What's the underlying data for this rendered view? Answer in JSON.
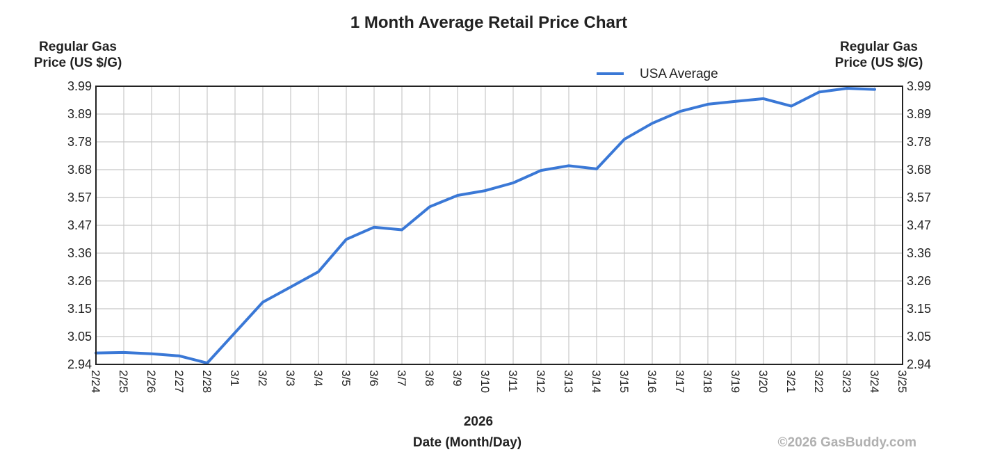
{
  "chart_data": {
    "type": "line",
    "title": "1 Month Average Retail Price Chart",
    "ylabel_left": [
      "Regular Gas",
      "Price (US $/G)"
    ],
    "ylabel_right": [
      "Regular Gas",
      "Price (US $/G)"
    ],
    "xlabel_year": "2026",
    "xlabel": "Date (Month/Day)",
    "copyright": "©2026 GasBuddy.com",
    "ylim": [
      2.94,
      3.99
    ],
    "yticks": [
      "3.99",
      "3.89",
      "3.78",
      "3.68",
      "3.57",
      "3.47",
      "3.36",
      "3.26",
      "3.15",
      "3.05",
      "2.94"
    ],
    "categories": [
      "2/24",
      "2/25",
      "2/26",
      "2/27",
      "2/28",
      "3/1",
      "3/2",
      "3/3",
      "3/4",
      "3/5",
      "3/6",
      "3/7",
      "3/8",
      "3/9",
      "3/10",
      "3/11",
      "3/12",
      "3/13",
      "3/14",
      "3/15",
      "3/16",
      "3/17",
      "3/18",
      "3/19",
      "3/20",
      "3/21",
      "3/22",
      "3/23",
      "3/24",
      "3/25"
    ],
    "grid": true,
    "legend": "top-right",
    "series": [
      {
        "name": "USA Average",
        "color": "#3a78d6",
        "points": [
          [
            0,
            2.983
          ],
          [
            1,
            2.985
          ],
          [
            2,
            2.98
          ],
          [
            3,
            2.972
          ],
          [
            4,
            2.945
          ],
          [
            5,
            3.06
          ],
          [
            6,
            3.175
          ],
          [
            7,
            3.232
          ],
          [
            8,
            3.29
          ],
          [
            9,
            3.412
          ],
          [
            10,
            3.458
          ],
          [
            11,
            3.448
          ],
          [
            12,
            3.535
          ],
          [
            13,
            3.578
          ],
          [
            14,
            3.596
          ],
          [
            15,
            3.625
          ],
          [
            16,
            3.672
          ],
          [
            17,
            3.69
          ],
          [
            18,
            3.678
          ],
          [
            19,
            3.79
          ],
          [
            20,
            3.85
          ],
          [
            21,
            3.895
          ],
          [
            22,
            3.922
          ],
          [
            23,
            3.933
          ],
          [
            24,
            3.943
          ],
          [
            25,
            3.915
          ],
          [
            26,
            3.968
          ],
          [
            27,
            3.982
          ],
          [
            28,
            3.978
          ]
        ]
      }
    ]
  }
}
